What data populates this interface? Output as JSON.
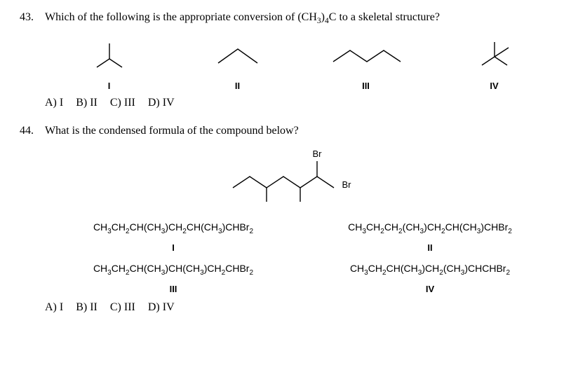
{
  "q43": {
    "number": "43.",
    "text_before": "Which of the following is the appropriate conversion of (CH",
    "sub1": "3",
    "text_mid": ")",
    "sub2": "4",
    "text_after": "C to a skeletal structure?",
    "labels": [
      "I",
      "II",
      "III",
      "IV"
    ],
    "answers": {
      "a": "A) I",
      "b": "B) II",
      "c": "C) III",
      "d": "D) IV"
    }
  },
  "q44": {
    "number": "44.",
    "text": "What is the condensed formula of the compound below?",
    "br": "Br",
    "formulas": {
      "I": {
        "parts": [
          "CH",
          "3",
          "CH",
          "2",
          "CH(CH",
          "3",
          ")CH",
          "2",
          "CH(CH",
          "3",
          ")CHBr",
          "2"
        ],
        "label": "I"
      },
      "II": {
        "parts": [
          "CH",
          "3",
          "CH",
          "2",
          "CH",
          "2",
          "(CH",
          "3",
          ")CH",
          "2",
          "CH(CH",
          "3",
          ")CHBr",
          "2"
        ],
        "label": "II"
      },
      "III": {
        "parts": [
          "CH",
          "3",
          "CH",
          "2",
          "CH(CH",
          "3",
          ")CH(CH",
          "3",
          ")CH",
          "2",
          "CHBr",
          "2"
        ],
        "label": "III"
      },
      "IV": {
        "parts": [
          "CH",
          "3",
          "CH",
          "2",
          "CH(CH",
          "3",
          ")CH",
          "2",
          "(CH",
          "3",
          ")CHCHBr",
          "2"
        ],
        "label": "IV"
      }
    },
    "answers": {
      "a": "A) I",
      "b": "B) II",
      "c": "C) III",
      "d": "D) IV"
    }
  }
}
